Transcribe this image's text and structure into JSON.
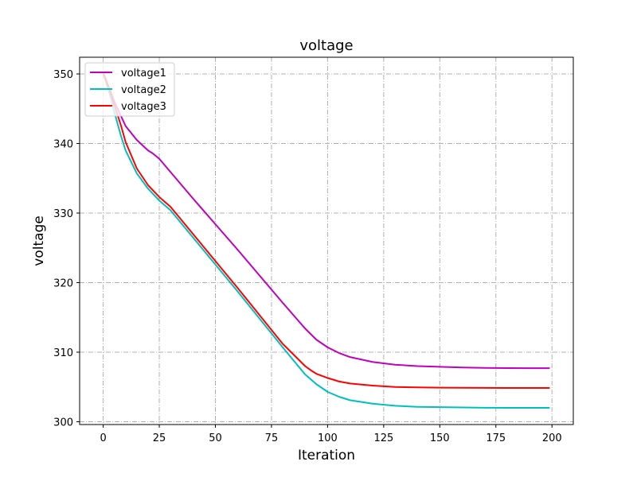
{
  "chart_data": {
    "type": "line",
    "title": "voltage",
    "xlabel": "Iteration",
    "ylabel": "voltage",
    "xlim": [
      -10.5,
      209.5
    ],
    "ylim": [
      299.6,
      352.4
    ],
    "xticks": [
      0,
      25,
      50,
      75,
      100,
      125,
      150,
      175,
      200
    ],
    "yticks": [
      300,
      310,
      320,
      330,
      340,
      350
    ],
    "grid": true,
    "grid_style": "dash-dot",
    "legend_position": "upper-left",
    "series": [
      {
        "name": "voltage1",
        "color": "#bf00bf",
        "x": [
          0,
          5,
          10,
          15,
          20,
          22,
          25,
          30,
          40,
          50,
          60,
          70,
          80,
          90,
          95,
          100,
          105,
          110,
          120,
          130,
          140,
          150,
          160,
          170,
          180,
          190,
          199
        ],
        "y": [
          350.2,
          346.0,
          342.5,
          340.5,
          339.0,
          338.6,
          337.8,
          335.9,
          332.1,
          328.4,
          324.7,
          320.9,
          317.1,
          313.4,
          311.8,
          310.7,
          309.9,
          309.3,
          308.6,
          308.2,
          308.0,
          307.9,
          307.8,
          307.75,
          307.72,
          307.7,
          307.7
        ]
      },
      {
        "name": "voltage2",
        "color": "#00bfbf",
        "x": [
          0,
          3,
          5,
          8,
          10,
          15,
          20,
          25,
          30,
          40,
          50,
          60,
          70,
          80,
          90,
          95,
          100,
          105,
          110,
          120,
          130,
          140,
          150,
          160,
          170,
          180,
          190,
          199
        ],
        "y": [
          350.2,
          347.0,
          344.5,
          341.0,
          339.0,
          335.7,
          333.5,
          331.8,
          330.4,
          326.5,
          322.6,
          318.7,
          314.7,
          310.7,
          306.8,
          305.4,
          304.3,
          303.6,
          303.1,
          302.6,
          302.3,
          302.15,
          302.1,
          302.05,
          302.02,
          302.0,
          302.0,
          302.0
        ]
      },
      {
        "name": "voltage3",
        "color": "#ff0000",
        "x": [
          0,
          3,
          5,
          8,
          10,
          15,
          20,
          25,
          30,
          40,
          50,
          60,
          70,
          80,
          90,
          93,
          95,
          100,
          105,
          110,
          120,
          130,
          140,
          150,
          160,
          170,
          180,
          190,
          199
        ],
        "y": [
          350.2,
          347.5,
          345.5,
          342.5,
          340.2,
          336.4,
          334.0,
          332.3,
          330.9,
          327.0,
          323.1,
          319.2,
          315.2,
          311.2,
          308.0,
          307.3,
          306.9,
          306.3,
          305.8,
          305.5,
          305.2,
          305.0,
          304.95,
          304.9,
          304.88,
          304.87,
          304.86,
          304.85,
          304.85
        ]
      }
    ]
  }
}
